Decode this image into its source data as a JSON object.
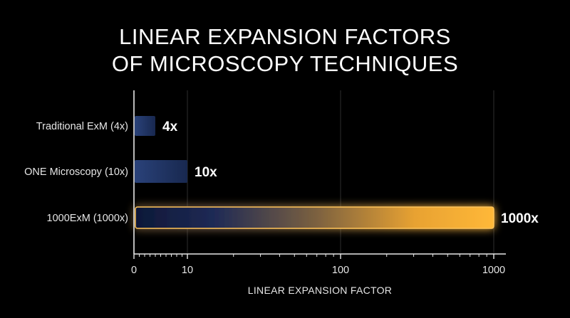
{
  "chart_data": {
    "type": "bar",
    "orientation": "horizontal",
    "title_lines": [
      "LINEAR EXPANSION FACTORS",
      "OF MICROSCOPY TECHNIQUES"
    ],
    "categories": [
      "Traditional ExM (4x)",
      "ONE Microscopy (10x)",
      "1000ExM (1000x)"
    ],
    "values": [
      4,
      10,
      1000
    ],
    "value_labels": [
      "4x",
      "10x",
      "1000x"
    ],
    "xlabel": "LINEAR EXPANSION FACTOR",
    "ylabel": "",
    "x_ticks": [
      0,
      10,
      100,
      1000
    ],
    "x_tick_labels": [
      "0",
      "10",
      "100",
      "1000"
    ],
    "x_scale": "log",
    "xlim": [
      0,
      1000
    ],
    "grid": "vertical",
    "legend": "none",
    "colors": {
      "background": "#000000",
      "bar_blue": "#1c3263",
      "bar_highlight": "#f5a623",
      "grid": "#2e2e2e",
      "axis": "#e8e8e8",
      "text": "#ffffff"
    }
  }
}
